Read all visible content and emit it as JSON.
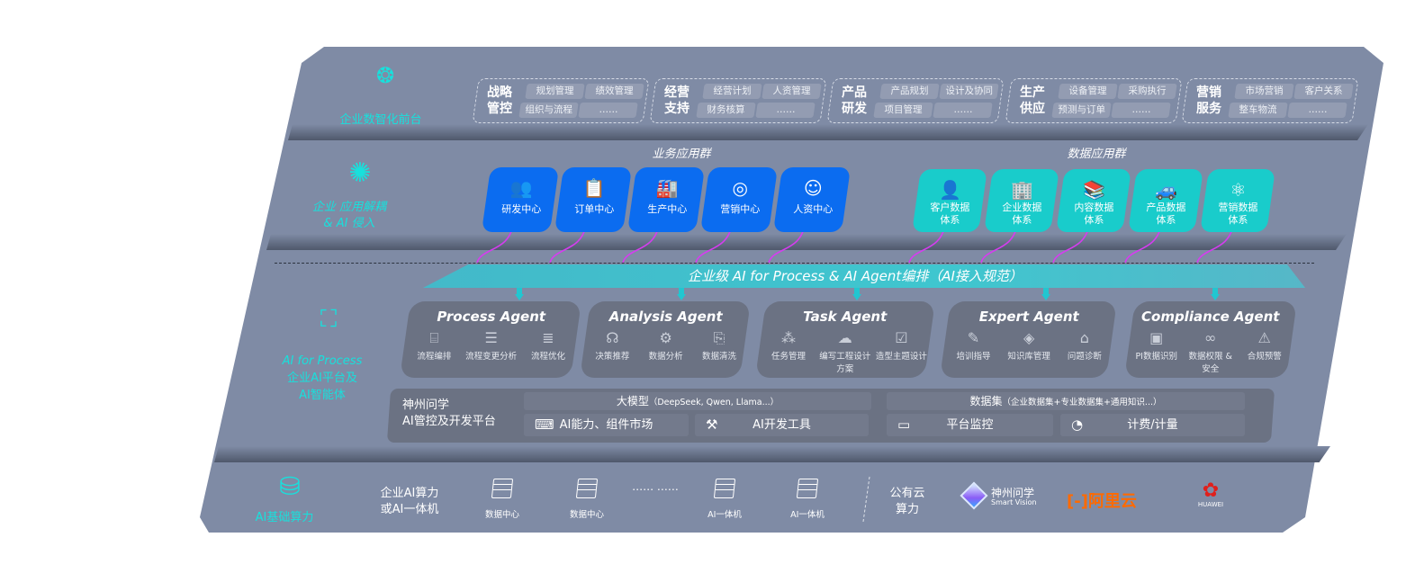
{
  "layers": {
    "front": {
      "label": "企业数智化前台",
      "icon": "brain-icon"
    },
    "apps": {
      "label_1": "企业 应用解耦",
      "label_2": "& AI 侵入",
      "icon": "molecule-icon"
    },
    "ai": {
      "label_1": "AI for Process",
      "label_2": "企业AI平台及",
      "label_3": "AI智能体",
      "icon": "face-scan-icon"
    },
    "infra": {
      "label": "AI基础算力",
      "icon": "database-icon"
    }
  },
  "front_groups": [
    {
      "title_1": "战略",
      "title_2": "管控",
      "items": [
        "规划管理",
        "绩效管理",
        "组织与流程",
        "……"
      ]
    },
    {
      "title_1": "经营",
      "title_2": "支持",
      "items": [
        "经营计划",
        "人资管理",
        "财务核算",
        "……"
      ]
    },
    {
      "title_1": "产品",
      "title_2": "研发",
      "items": [
        "产品规划",
        "设计及协同",
        "项目管理",
        "……"
      ]
    },
    {
      "title_1": "生产",
      "title_2": "供应",
      "items": [
        "设备管理",
        "采购执行",
        "预测与订单",
        "……"
      ]
    },
    {
      "title_1": "营销",
      "title_2": "服务",
      "items": [
        "市场营销",
        "客户关系",
        "整车物流",
        "……"
      ]
    }
  ],
  "business_apps": {
    "title": "业务应用群",
    "color": "#0b6cf0",
    "items": [
      {
        "label": "研发中心",
        "icon": "users-icon",
        "glyph": "👥"
      },
      {
        "label": "订单中心",
        "icon": "clipboard-icon",
        "glyph": "📋"
      },
      {
        "label": "生产中心",
        "icon": "factory-icon",
        "glyph": "🏭"
      },
      {
        "label": "营销中心",
        "icon": "target-icon",
        "glyph": "◎"
      },
      {
        "label": "人资中心",
        "icon": "person-icon",
        "glyph": "☺"
      }
    ]
  },
  "data_apps": {
    "title": "数据应用群",
    "color": "#19cccb",
    "items": [
      {
        "label_1": "客户数据",
        "label_2": "体系",
        "icon": "user-icon",
        "glyph": "👤"
      },
      {
        "label_1": "企业数据",
        "label_2": "体系",
        "icon": "building-icon",
        "glyph": "🏢"
      },
      {
        "label_1": "内容数据",
        "label_2": "体系",
        "icon": "books-icon",
        "glyph": "📚"
      },
      {
        "label_1": "产品数据",
        "label_2": "体系",
        "icon": "car-icon",
        "glyph": "🚙"
      },
      {
        "label_1": "营销数据",
        "label_2": "体系",
        "icon": "atom-icon",
        "glyph": "⚛"
      }
    ]
  },
  "orchestration_banner": "企业级 AI for Process & AI Agent编排（AI接入规范）",
  "agents": [
    {
      "name": "Process Agent",
      "features": [
        {
          "label": "流程编排",
          "icon": "chart-box-icon",
          "glyph": "⌸"
        },
        {
          "label": "流程变更分析",
          "icon": "list-icon",
          "glyph": "☰"
        },
        {
          "label": "流程优化",
          "icon": "stack-icon",
          "glyph": "≣"
        }
      ]
    },
    {
      "name": "Analysis Agent",
      "features": [
        {
          "label": "决策推荐",
          "icon": "head-icon",
          "glyph": "☊"
        },
        {
          "label": "数据分析",
          "icon": "gear-icon",
          "glyph": "⚙"
        },
        {
          "label": "数据清洗",
          "icon": "document-icon",
          "glyph": "⎘"
        }
      ]
    },
    {
      "name": "Task Agent",
      "features": [
        {
          "label": "任务管理",
          "icon": "network-icon",
          "glyph": "⁂"
        },
        {
          "label": "编写工程设计方案",
          "icon": "cloud-icon",
          "glyph": "☁"
        },
        {
          "label": "造型主题设计",
          "icon": "checklist-icon",
          "glyph": "☑"
        }
      ]
    },
    {
      "name": "Expert Agent",
      "features": [
        {
          "label": "培训指导",
          "icon": "teach-icon",
          "glyph": "✎"
        },
        {
          "label": "知识库管理",
          "icon": "layers-icon",
          "glyph": "◈"
        },
        {
          "label": "问题诊断",
          "icon": "diagnose-icon",
          "glyph": "⌂"
        }
      ]
    },
    {
      "name": "Compliance Agent",
      "features": [
        {
          "label": "PI数据识别",
          "icon": "id-card-icon",
          "glyph": "▣"
        },
        {
          "label": "数据权限 & 安全",
          "icon": "link-icon",
          "glyph": "∞"
        },
        {
          "label": "合规预警",
          "icon": "alert-icon",
          "glyph": "⚠"
        }
      ]
    }
  ],
  "platform": {
    "name_1": "神州问学",
    "name_2": "AI管控及开发平台",
    "llm_title": "大模型",
    "llm_note": "（DeepSeek, Qwen, Llama...）",
    "dataset_title": "数据集",
    "dataset_note": "（企业数据集+专业数据集+通用知识...）",
    "modules": [
      {
        "label": "AI能力、组件市场",
        "icon": "marketplace-icon",
        "glyph": "⌨"
      },
      {
        "label": "AI开发工具",
        "icon": "dev-tools-icon",
        "glyph": "⚒"
      },
      {
        "label": "平台监控",
        "icon": "monitor-icon",
        "glyph": "▭"
      },
      {
        "label": "计费/计量",
        "icon": "gauge-icon",
        "glyph": "◔"
      }
    ]
  },
  "infra": {
    "private_1": "企业AI算力",
    "private_2": "或AI一体机",
    "servers": [
      "数据中心",
      "数据中心",
      "AI一体机",
      "AI一体机"
    ],
    "ellipsis": "…… ……",
    "public_1": "公有云",
    "public_2": "算力",
    "providers": [
      {
        "name": "神州问学",
        "sub": "Smart Vision",
        "color": "#8a5cf6"
      },
      {
        "name": "阿里云",
        "color": "#ff6a00"
      },
      {
        "name": "HUAWEI",
        "color": "#e0201c"
      }
    ]
  },
  "colors": {
    "panel": "#7f8ba5",
    "accent": "#18e0dc",
    "connector": "#d63cf0"
  }
}
